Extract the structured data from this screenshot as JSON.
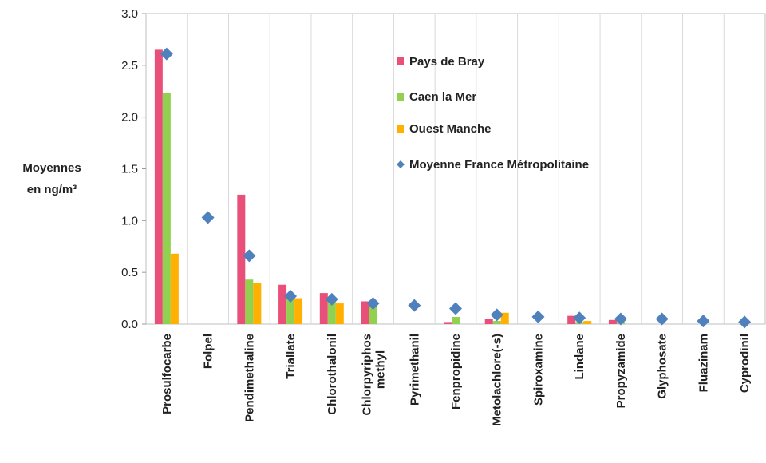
{
  "chart_data": {
    "type": "bar",
    "y_label": [
      "Moyennes",
      "en ng/m³"
    ],
    "categories": [
      "Prosulfocarbe",
      "Folpel",
      "Pendimethaline",
      "Triallate",
      "Chlorothalonil",
      "Chlorpyriphos methyl",
      "Pyrimethanil",
      "Fenpropidine",
      "Metolachlore(-s)",
      "Spiroxamine",
      "Lindane",
      "Propyzamide",
      "Glyphosate",
      "Fluazinam",
      "Cyprodinil"
    ],
    "series": [
      {
        "name": "Pays de Bray",
        "color": "#e8507a",
        "values": [
          2.65,
          null,
          1.25,
          0.38,
          0.3,
          0.22,
          null,
          0.02,
          0.05,
          null,
          0.08,
          0.04,
          null,
          null,
          null
        ]
      },
      {
        "name": "Caen la Mer",
        "color": "#92d050",
        "values": [
          2.23,
          null,
          0.43,
          0.28,
          0.24,
          0.19,
          null,
          0.07,
          0.03,
          null,
          0.02,
          0.02,
          null,
          null,
          null
        ]
      },
      {
        "name": "Ouest Manche",
        "color": "#ffb000",
        "values": [
          0.68,
          null,
          0.4,
          0.25,
          0.2,
          null,
          null,
          null,
          0.11,
          null,
          0.03,
          null,
          null,
          null,
          null
        ]
      },
      {
        "name": "Moyenne France Métropolitaine",
        "color": "#4f81bd",
        "marker": "diamond",
        "values": [
          2.61,
          1.03,
          0.66,
          0.27,
          0.24,
          0.2,
          0.18,
          0.15,
          0.09,
          0.07,
          0.06,
          0.05,
          0.05,
          0.03,
          0.02
        ]
      }
    ],
    "ylim": [
      0,
      3
    ],
    "yticks": [
      {
        "value": 0,
        "label": "0.0"
      },
      {
        "value": 0.5,
        "label": "0.5"
      },
      {
        "value": 1,
        "label": "1.0"
      },
      {
        "value": 1.5,
        "label": "1.5"
      },
      {
        "value": 2,
        "label": "2.0"
      },
      {
        "value": 2.5,
        "label": "2.5"
      },
      {
        "value": 3,
        "label": "3.0"
      }
    ],
    "legend": "upper center"
  }
}
